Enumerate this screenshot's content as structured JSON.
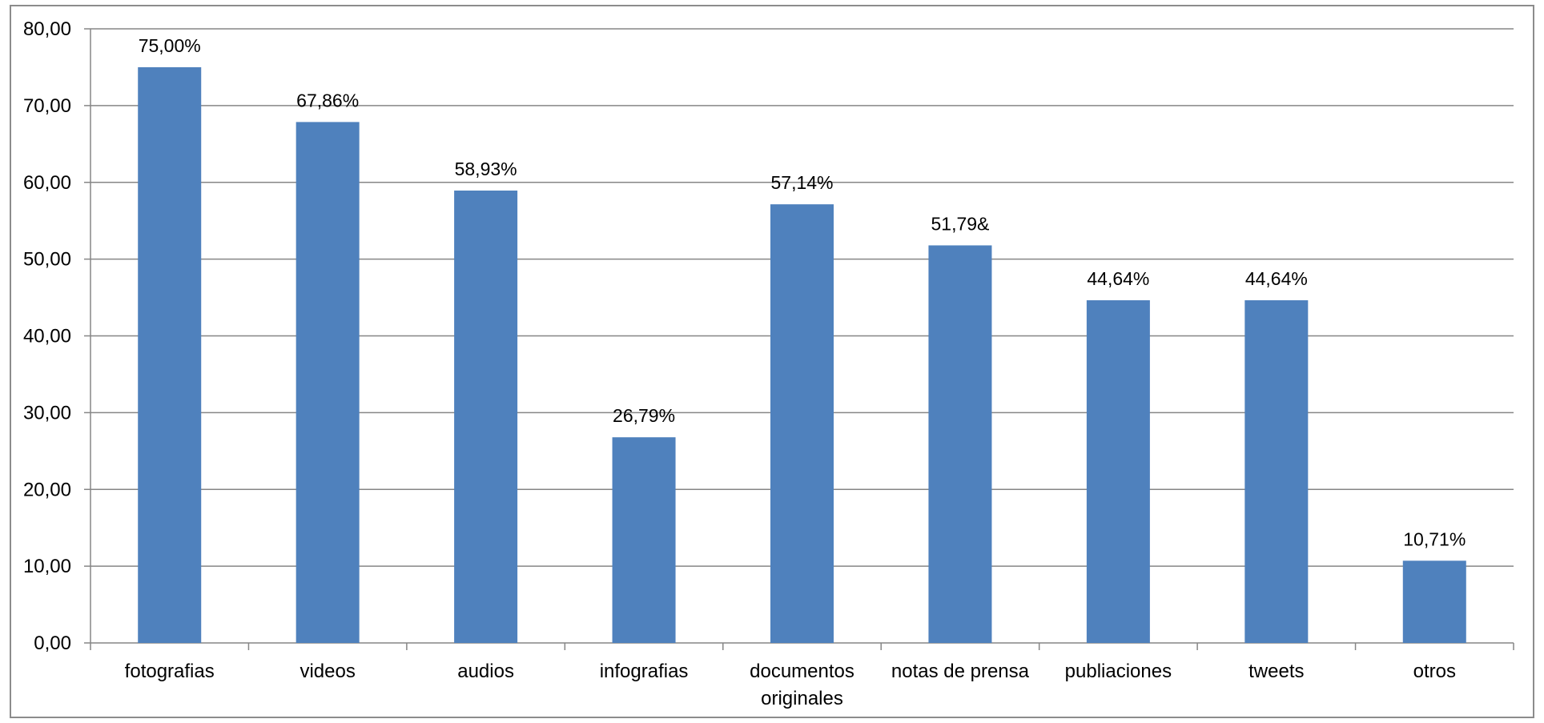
{
  "chart_data": {
    "type": "bar",
    "categories": [
      [
        "fotografias"
      ],
      [
        "videos"
      ],
      [
        "audios"
      ],
      [
        "infografias"
      ],
      [
        "documentos",
        "originales"
      ],
      [
        "notas de prensa"
      ],
      [
        "publiaciones"
      ],
      [
        "tweets"
      ],
      [
        "otros"
      ]
    ],
    "values": [
      75.0,
      67.86,
      58.93,
      26.79,
      57.14,
      51.79,
      44.64,
      44.64,
      10.71
    ],
    "data_labels": [
      "75,00%",
      "67,86%",
      "58,93%",
      "26,79%",
      "57,14%",
      "51,79&",
      "44,64%",
      "44,64%",
      "10,71%"
    ],
    "y_ticks": [
      "0,00",
      "10,00",
      "20,00",
      "30,00",
      "40,00",
      "50,00",
      "60,00",
      "70,00",
      "80,00"
    ],
    "ylim": [
      0,
      80
    ],
    "grid": true,
    "legend": "none",
    "colors": {
      "bar": "#4f81bd",
      "grid": "#868686",
      "axis": "#868686",
      "frame": "#8c8c8c"
    }
  }
}
